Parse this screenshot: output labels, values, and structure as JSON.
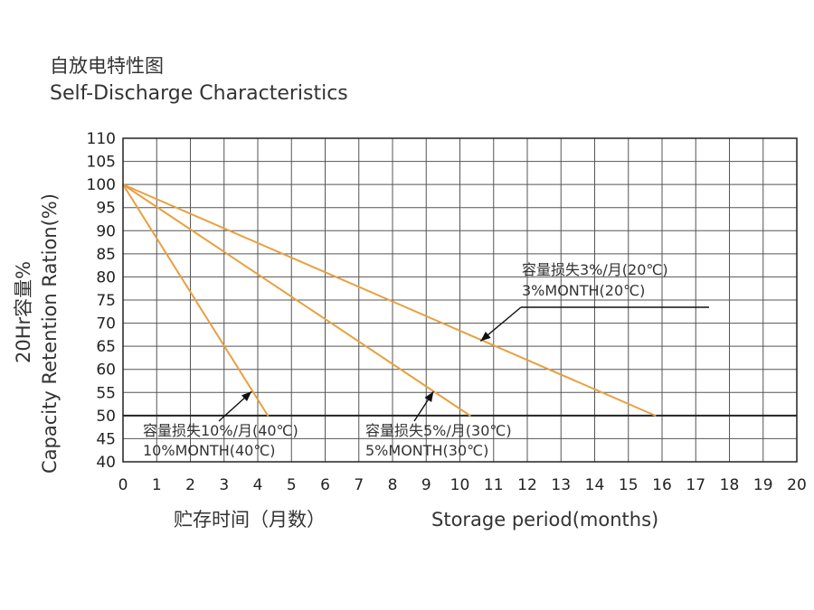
{
  "title_cn": "自放电特性图",
  "title_en": "Self-Discharge Characteristics",
  "chart_data": {
    "type": "line",
    "title": "Self-Discharge Characteristics",
    "xlabel_cn": "贮存时间（月数）",
    "xlabel": "Storage period(months)",
    "ylabel_cn": "20Hr容量%",
    "ylabel": "Capacity Retention Ration(%)",
    "xlim": [
      0,
      20
    ],
    "ylim": [
      40,
      110
    ],
    "x_ticks": [
      0,
      1,
      2,
      3,
      4,
      5,
      6,
      7,
      8,
      9,
      10,
      11,
      12,
      13,
      14,
      15,
      16,
      17,
      18,
      19,
      20
    ],
    "y_ticks": [
      40,
      45,
      50,
      55,
      60,
      65,
      70,
      75,
      80,
      85,
      90,
      95,
      100,
      105,
      110
    ],
    "grid": true,
    "highlight_line_y": 50,
    "line_color": "#e8a040",
    "series": [
      {
        "name": "10%MONTH(40℃)",
        "x": [
          0,
          4.3
        ],
        "y": [
          100,
          50
        ]
      },
      {
        "name": "5%MONTH(30℃)",
        "x": [
          0,
          10.3
        ],
        "y": [
          100,
          50
        ]
      },
      {
        "name": "3%MONTH(20℃)",
        "x": [
          0,
          15.8
        ],
        "y": [
          100,
          50
        ]
      }
    ],
    "annotations": [
      {
        "label_cn": "容量损失10%/月(40℃)",
        "label_en": "10%MONTH(40℃)"
      },
      {
        "label_cn": "容量损失5%/月(30℃)",
        "label_en": "5%MONTH(30℃)"
      },
      {
        "label_cn": "容量损失3%/月(20℃)",
        "label_en": "3%MONTH(20℃)"
      }
    ]
  }
}
